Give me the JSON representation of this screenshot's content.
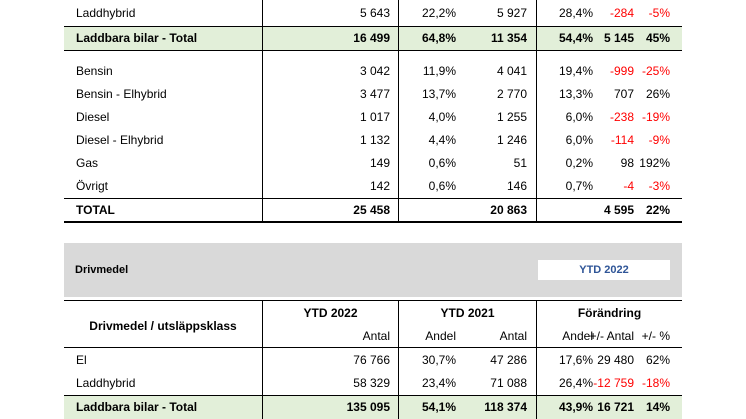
{
  "table1": {
    "rows": [
      {
        "label": "Laddhybrid",
        "n1": "5 643",
        "p1": "22,2%",
        "n2": "5 927",
        "p2": "28,4%",
        "n3": "-284",
        "p3": "-5%"
      },
      {
        "label": "Laddbara bilar - Total",
        "n1": "16 499",
        "p1": "64,8%",
        "n2": "11 354",
        "p2": "54,4%",
        "n3": "5 145",
        "p3": "45%"
      },
      {
        "label": "Bensin",
        "n1": "3 042",
        "p1": "11,9%",
        "n2": "4 041",
        "p2": "19,4%",
        "n3": "-999",
        "p3": "-25%"
      },
      {
        "label": "Bensin - Elhybrid",
        "n1": "3 477",
        "p1": "13,7%",
        "n2": "2 770",
        "p2": "13,3%",
        "n3": "707",
        "p3": "26%"
      },
      {
        "label": "Diesel",
        "n1": "1 017",
        "p1": "4,0%",
        "n2": "1 255",
        "p2": "6,0%",
        "n3": "-238",
        "p3": "-19%"
      },
      {
        "label": "Diesel - Elhybrid",
        "n1": "1 132",
        "p1": "4,4%",
        "n2": "1 246",
        "p2": "6,0%",
        "n3": "-114",
        "p3": "-9%"
      },
      {
        "label": "Gas",
        "n1": "149",
        "p1": "0,6%",
        "n2": "51",
        "p2": "0,2%",
        "n3": "98",
        "p3": "192%"
      },
      {
        "label": "Övrigt",
        "n1": "142",
        "p1": "0,6%",
        "n2": "146",
        "p2": "0,7%",
        "n3": "-4",
        "p3": "-3%"
      },
      {
        "label": "TOTAL",
        "n1": "25 458",
        "p1": "",
        "n2": "20 863",
        "p2": "",
        "n3": "4 595",
        "p3": "22%"
      }
    ]
  },
  "section2": {
    "title": "Drivmedel",
    "period_box": "YTD 2022",
    "header": {
      "label": "Drivmedel / utsläppsklass",
      "group1": "YTD 2022",
      "group2": "YTD 2021",
      "group3": "Förändring",
      "antal": "Antal",
      "andel": "Andel",
      "diff_antal": "+/- Antal",
      "diff_pct": "+/- %"
    },
    "rows": [
      {
        "label": "El",
        "n1": "76 766",
        "p1": "30,7%",
        "n2": "47 286",
        "p2": "17,6%",
        "n3": "29 480",
        "p3": "62%"
      },
      {
        "label": "Laddhybrid",
        "n1": "58 329",
        "p1": "23,4%",
        "n2": "71 088",
        "p2": "26,4%",
        "n3": "-12 759",
        "p3": "-18%"
      },
      {
        "label": "Laddbara bilar - Total",
        "n1": "135 095",
        "p1": "54,1%",
        "n2": "118 374",
        "p2": "43,9%",
        "n3": "16 721",
        "p3": "14%"
      }
    ]
  },
  "colors": {
    "negative": "#ff0000",
    "highlight_row": "#e2efd9",
    "section_bg": "#d9d9d9",
    "period_text": "#2f5597"
  }
}
